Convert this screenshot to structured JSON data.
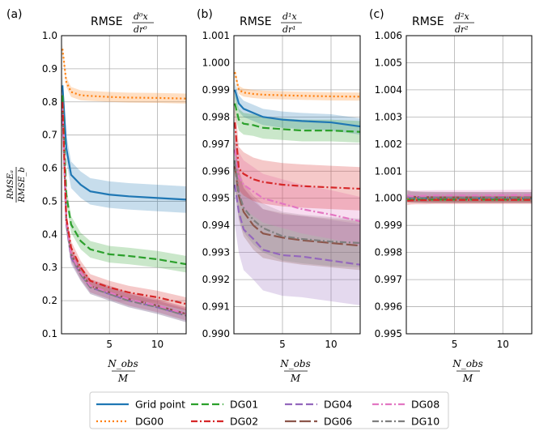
{
  "chart_data": [
    {
      "type": "line",
      "panel_label": "(a)",
      "title_prefix": "RMSE",
      "title_num": "d⁰x",
      "title_den": "dr⁰",
      "ylabel_num": "RMSEₐ",
      "ylabel_den": "RMSE_b",
      "xlabel_num": "N_obs",
      "xlabel_den": "M",
      "xlim": [
        0,
        13
      ],
      "ylim": [
        0.1,
        1.0
      ],
      "xticks": [
        "5",
        "10"
      ],
      "yticks": [
        "0.1",
        "0.2",
        "0.3",
        "0.4",
        "0.5",
        "0.6",
        "0.7",
        "0.8",
        "0.9",
        "1.0"
      ],
      "grid": true,
      "x": [
        0.1,
        0.5,
        1,
        2,
        3,
        5,
        7,
        10,
        13
      ],
      "series": [
        {
          "name": "Grid point",
          "values": [
            0.85,
            0.66,
            0.58,
            0.55,
            0.53,
            0.52,
            0.515,
            0.51,
            0.505
          ],
          "band": 0.04
        },
        {
          "name": "DG00",
          "values": [
            0.96,
            0.86,
            0.83,
            0.82,
            0.818,
            0.815,
            0.813,
            0.812,
            0.81
          ],
          "band": 0.015
        },
        {
          "name": "DG01",
          "values": [
            0.82,
            0.52,
            0.43,
            0.38,
            0.355,
            0.34,
            0.335,
            0.325,
            0.31
          ],
          "band": 0.025
        },
        {
          "name": "DG02",
          "values": [
            0.8,
            0.45,
            0.36,
            0.3,
            0.26,
            0.24,
            0.225,
            0.21,
            0.19
          ],
          "band": 0.02
        },
        {
          "name": "DG04",
          "values": [
            0.78,
            0.43,
            0.33,
            0.28,
            0.24,
            0.22,
            0.2,
            0.18,
            0.155
          ],
          "band": 0.02
        },
        {
          "name": "DG06",
          "values": [
            0.79,
            0.44,
            0.34,
            0.285,
            0.245,
            0.225,
            0.205,
            0.185,
            0.16
          ],
          "band": 0.02
        },
        {
          "name": "DG08",
          "values": [
            0.79,
            0.44,
            0.34,
            0.285,
            0.245,
            0.225,
            0.205,
            0.185,
            0.16
          ],
          "band": 0.02
        },
        {
          "name": "DG10",
          "values": [
            0.785,
            0.435,
            0.335,
            0.28,
            0.24,
            0.22,
            0.2,
            0.18,
            0.155
          ],
          "band": 0.02
        }
      ]
    },
    {
      "type": "line",
      "panel_label": "(b)",
      "title_prefix": "RMSE",
      "title_num": "d¹x",
      "title_den": "dr¹",
      "xlabel_num": "N_obs",
      "xlabel_den": "M",
      "xlim": [
        0,
        13
      ],
      "ylim": [
        0.99,
        1.001
      ],
      "xticks": [
        "5",
        "10"
      ],
      "yticks": [
        "0.990",
        "0.991",
        "0.992",
        "0.993",
        "0.994",
        "0.995",
        "0.996",
        "0.997",
        "0.998",
        "0.999",
        "1.000",
        "1.001"
      ],
      "grid": true,
      "x": [
        0.1,
        0.5,
        1,
        2,
        3,
        5,
        7,
        10,
        13
      ],
      "series": [
        {
          "name": "Grid point",
          "values": [
            0.999,
            0.9985,
            0.9983,
            0.99815,
            0.998,
            0.9979,
            0.99785,
            0.9978,
            0.99765
          ],
          "band": 0.0003
        },
        {
          "name": "DG00",
          "values": [
            0.99965,
            0.999,
            0.9989,
            0.99885,
            0.99882,
            0.9988,
            0.99878,
            0.99876,
            0.99875
          ],
          "band": 0.00015
        },
        {
          "name": "DG01",
          "values": [
            0.9985,
            0.9979,
            0.99775,
            0.9977,
            0.9976,
            0.99755,
            0.9975,
            0.9975,
            0.99745
          ],
          "band": 0.0004
        },
        {
          "name": "DG02",
          "values": [
            0.9978,
            0.9961,
            0.9959,
            0.9957,
            0.9956,
            0.9955,
            0.99545,
            0.9954,
            0.99535
          ],
          "band": 0.0008
        },
        {
          "name": "DG04",
          "values": [
            0.9955,
            0.9945,
            0.99385,
            0.9935,
            0.9931,
            0.9929,
            0.99285,
            0.9927,
            0.99255
          ],
          "band": 0.0015
        },
        {
          "name": "DG06",
          "values": [
            0.9962,
            0.9951,
            0.9945,
            0.994,
            0.9937,
            0.99355,
            0.99345,
            0.99335,
            0.99325
          ],
          "band": 0.0009
        },
        {
          "name": "DG08",
          "values": [
            0.9968,
            0.9958,
            0.9955,
            0.99525,
            0.995,
            0.9948,
            0.9946,
            0.9944,
            0.99415
          ],
          "band": 0.0009
        },
        {
          "name": "DG10",
          "values": [
            0.9964,
            0.9952,
            0.99465,
            0.9942,
            0.9939,
            0.9936,
            0.9935,
            0.9934,
            0.99335
          ],
          "band": 0.0009
        }
      ]
    },
    {
      "type": "line",
      "panel_label": "(c)",
      "title_prefix": "RMSE",
      "title_num": "d²x",
      "title_den": "dr²",
      "xlabel_num": "N_obs",
      "xlabel_den": "M",
      "xlim": [
        0,
        13
      ],
      "ylim": [
        0.995,
        1.006
      ],
      "xticks": [
        "5",
        "10"
      ],
      "yticks": [
        "0.995",
        "0.996",
        "0.997",
        "0.998",
        "0.999",
        "1.000",
        "1.001",
        "1.002",
        "1.003",
        "1.004",
        "1.005",
        "1.006"
      ],
      "grid": true,
      "x": [
        0.1,
        0.5,
        1,
        2,
        3,
        5,
        7,
        10,
        13
      ],
      "series": [
        {
          "name": "Grid point",
          "values": [
            1.0,
            1.0,
            1.0,
            1.0,
            1.0,
            1.0,
            1.0,
            1.0,
            1.0
          ],
          "band": 5e-05
        },
        {
          "name": "DG00",
          "values": [
            1.0,
            1.0,
            1.0,
            1.0,
            1.0,
            1.0,
            1.0,
            1.0,
            1.0
          ],
          "band": 5e-05
        },
        {
          "name": "DG01",
          "values": [
            0.99995,
            0.99995,
            0.99995,
            0.99995,
            0.99995,
            0.99995,
            0.99995,
            0.99995,
            0.99995
          ],
          "band": 0.0001
        },
        {
          "name": "DG02",
          "values": [
            0.9999,
            0.99992,
            0.99993,
            0.99993,
            0.99994,
            0.99994,
            0.99994,
            0.99994,
            0.99994
          ],
          "band": 0.00015
        },
        {
          "name": "DG04",
          "values": [
            1.00005,
            1.00003,
            1.00003,
            1.00002,
            1.00002,
            1.00002,
            1.00002,
            1.00002,
            1.00002
          ],
          "band": 0.0002
        },
        {
          "name": "DG06",
          "values": [
            1.0001,
            1.00006,
            1.00005,
            1.00004,
            1.00003,
            1.00003,
            1.00003,
            1.00003,
            1.00003
          ],
          "band": 0.0002
        },
        {
          "name": "DG08",
          "values": [
            1.0001,
            1.00008,
            1.00008,
            1.00009,
            1.0001,
            1.0001,
            1.0001,
            1.00011,
            1.00012
          ],
          "band": 0.0002
        },
        {
          "name": "DG10",
          "values": [
            1.0001,
            1.00006,
            1.00005,
            1.00004,
            1.00004,
            1.00003,
            1.00003,
            1.00003,
            1.00003
          ],
          "band": 0.0002
        }
      ]
    }
  ],
  "legend": {
    "placement": "bottom-center",
    "entries": [
      {
        "name": "Grid point",
        "color": "#1f77b4",
        "dash": "solid"
      },
      {
        "name": "DG00",
        "color": "#ff7f0e",
        "dash": "dotted"
      },
      {
        "name": "DG01",
        "color": "#2ca02c",
        "dash": "dashed"
      },
      {
        "name": "DG02",
        "color": "#d62728",
        "dash": "dashdot"
      },
      {
        "name": "DG04",
        "color": "#9467bd",
        "dash": "dashed"
      },
      {
        "name": "DG06",
        "color": "#8c564b",
        "dash": "longdash"
      },
      {
        "name": "DG08",
        "color": "#e377c2",
        "dash": "dashdot"
      },
      {
        "name": "DG10",
        "color": "#7f7f7f",
        "dash": "dashdot"
      }
    ]
  },
  "colors": {
    "Grid point": "#1f77b4",
    "DG00": "#ff7f0e",
    "DG01": "#2ca02c",
    "DG02": "#d62728",
    "DG04": "#9467bd",
    "DG06": "#8c564b",
    "DG08": "#e377c2",
    "DG10": "#7f7f7f"
  }
}
